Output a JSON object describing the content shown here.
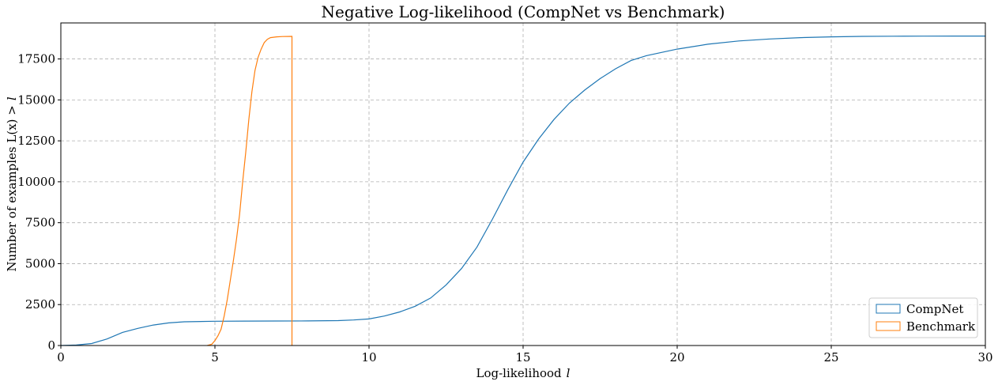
{
  "chart_data": {
    "type": "line",
    "title": "Negative Log-likelihood (CompNet vs Benchmark)",
    "xlabel": "Log-likelihood",
    "xlabel_symbol": "l",
    "ylabel": "Number of examples L(x) >",
    "ylabel_symbol": "l",
    "xlim": [
      0,
      30
    ],
    "ylim": [
      0,
      19700
    ],
    "xticks": [
      0,
      5,
      10,
      15,
      20,
      25,
      30
    ],
    "yticks": [
      0,
      2500,
      5000,
      7500,
      10000,
      12500,
      15000,
      17500
    ],
    "grid": true,
    "legend_position": "bottom-right",
    "series": [
      {
        "name": "CompNet",
        "color": "#1f77b4",
        "x": [
          0,
          0.5,
          1.0,
          1.5,
          2.0,
          2.5,
          3.0,
          3.5,
          4.0,
          5.0,
          6.0,
          7.0,
          8.0,
          9.0,
          9.5,
          10.0,
          10.5,
          11.0,
          11.5,
          12.0,
          12.5,
          13.0,
          13.5,
          14.0,
          14.5,
          15.0,
          15.5,
          16.0,
          16.5,
          17.0,
          17.5,
          18.0,
          18.5,
          19.0,
          20.0,
          21.0,
          22.0,
          23.0,
          24.0,
          25.0,
          26.0,
          27.0,
          28.0,
          29.0,
          30.0
        ],
        "y": [
          0,
          30,
          120,
          400,
          800,
          1050,
          1250,
          1380,
          1450,
          1480,
          1490,
          1495,
          1500,
          1520,
          1560,
          1620,
          1800,
          2050,
          2400,
          2900,
          3700,
          4700,
          6000,
          7700,
          9500,
          11200,
          12600,
          13800,
          14800,
          15600,
          16300,
          16900,
          17400,
          17700,
          18100,
          18400,
          18600,
          18720,
          18800,
          18850,
          18880,
          18890,
          18895,
          18898,
          18900
        ],
        "drop_to_zero_at": null
      },
      {
        "name": "Benchmark",
        "color": "#ff7f0e",
        "x": [
          4.75,
          4.9,
          5.0,
          5.1,
          5.2,
          5.3,
          5.4,
          5.5,
          5.6,
          5.7,
          5.8,
          5.9,
          6.0,
          6.1,
          6.2,
          6.3,
          6.4,
          6.5,
          6.6,
          6.7,
          6.8,
          7.0,
          7.2,
          7.5
        ],
        "y": [
          0,
          80,
          300,
          600,
          1000,
          1800,
          2800,
          4000,
          5200,
          6500,
          8000,
          10000,
          11800,
          13800,
          15500,
          16800,
          17600,
          18100,
          18500,
          18700,
          18800,
          18850,
          18870,
          18880
        ],
        "drop_to_zero_at": 7.5
      }
    ]
  }
}
